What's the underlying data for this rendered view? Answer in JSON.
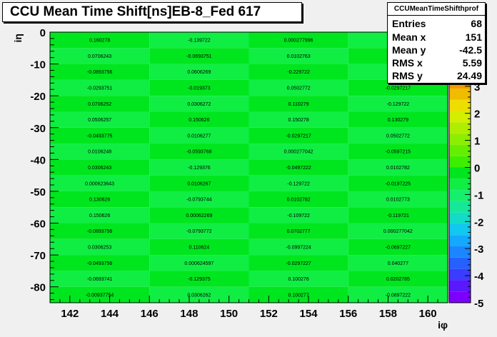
{
  "title": "CCU Mean Time Shift[ns]EB-8_Fed 617",
  "stats": {
    "name": "CCUMeanTimeShifthprof",
    "rows": [
      {
        "label": "Entries",
        "value": "68"
      },
      {
        "label": "Mean x",
        "value": "151"
      },
      {
        "label": "Mean y",
        "value": "-42.5"
      },
      {
        "label": "RMS x",
        "value": "5.59"
      },
      {
        "label": "RMS y",
        "value": "24.49"
      }
    ]
  },
  "chart_data": {
    "type": "heatmap",
    "xlabel": "iφ",
    "ylabel": "iη",
    "xlim": [
      141,
      161
    ],
    "ylim": [
      -85,
      0
    ],
    "zlim": [
      -5,
      5
    ],
    "x_ticks": [
      "142",
      "144",
      "146",
      "148",
      "150",
      "152",
      "154",
      "156",
      "158",
      "160"
    ],
    "y_ticks": [
      "0",
      "-10",
      "-20",
      "-30",
      "-40",
      "-50",
      "-60",
      "-70",
      "-80"
    ],
    "z_ticks": [
      "-5",
      "-4",
      "-3",
      "-2",
      "-1",
      "0",
      "1",
      "2",
      "3"
    ],
    "x_bins": [
      [
        141,
        146
      ],
      [
        146,
        151
      ],
      [
        151,
        156
      ],
      [
        156,
        161
      ]
    ],
    "y_bins": [
      [
        0,
        -5
      ],
      [
        -5,
        -10
      ],
      [
        -10,
        -15
      ],
      [
        -15,
        -20
      ],
      [
        -20,
        -25
      ],
      [
        -25,
        -30
      ],
      [
        -30,
        -35
      ],
      [
        -35,
        -40
      ],
      [
        -40,
        -45
      ],
      [
        -45,
        -50
      ],
      [
        -50,
        -55
      ],
      [
        -55,
        -60
      ],
      [
        -60,
        -65
      ],
      [
        -65,
        -70
      ],
      [
        -70,
        -75
      ],
      [
        -75,
        -80
      ],
      [
        -80,
        -85
      ]
    ],
    "cells": [
      [
        "0.160278",
        "-0.139722",
        "0.000277996",
        ""
      ],
      [
        "0.0706243",
        "-0.0693751",
        "0.0102763",
        ""
      ],
      [
        "-0.0893756",
        "0.0606269",
        "-0.229722",
        ""
      ],
      [
        "-0.0293751",
        "-0.019373",
        "0.0502772",
        "-0.0297217"
      ],
      [
        "0.0706252",
        "0.0306272",
        "0.110279",
        "-0.129722"
      ],
      [
        "0.0506257",
        "0.150626",
        "0.150278",
        "0.130279"
      ],
      [
        "-0.0493775",
        "0.0106277",
        "-0.0297217",
        "0.0502772"
      ],
      [
        "0.0106248",
        "-0.0593768",
        "0.000277042",
        "-0.0597215"
      ],
      [
        "0.0306243",
        "-0.129376",
        "-0.0497222",
        "0.0102782"
      ],
      [
        "0.000623643",
        "0.0106267",
        "-0.129722",
        "-0.0197225"
      ],
      [
        "0.130626",
        "-0.0793744",
        "0.0102782",
        "0.0102773"
      ],
      [
        "0.150626",
        "0.00062269",
        "-0.109722",
        "-0.119721"
      ],
      [
        "-0.0893756",
        "-0.0793772",
        "0.0702777",
        "0.000277042"
      ],
      [
        "0.0306253",
        "0.110624",
        "-0.0997224",
        "-0.0697227"
      ],
      [
        "-0.0493756",
        "0.000624597",
        "-0.0297227",
        "0.040277"
      ],
      [
        "-0.0693741",
        "-0.129375",
        "0.100276",
        "0.0202785"
      ],
      [
        "-0.00937754",
        "0.0306262",
        "0.100277",
        "-0.0897222"
      ]
    ],
    "palette": [
      "#7b00ff",
      "#5a18ff",
      "#3a3cff",
      "#2461ff",
      "#1a86ff",
      "#14a9ff",
      "#10c8f0",
      "#12dcc6",
      "#16e89a",
      "#16ee6e",
      "#10ee44",
      "#00e61e",
      "#3cee00",
      "#66ee00",
      "#8cee00",
      "#b0ee00",
      "#d4ee00",
      "#eede00",
      "#f0bc00",
      "#f09a00",
      "#f07800",
      "#f05600",
      "#f03400",
      "#f01600"
    ],
    "colors": {
      "cell_dark": "#00e61e",
      "cell_light": "#10ee44"
    }
  }
}
